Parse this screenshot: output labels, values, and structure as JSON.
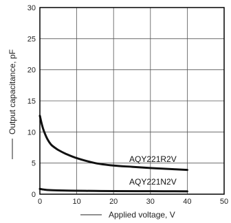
{
  "chart_data": {
    "type": "line",
    "xlabel": "Applied voltage, V",
    "ylabel": "Output capacitance, pF",
    "xlim": [
      0,
      50
    ],
    "ylim": [
      0,
      30
    ],
    "xticks": [
      0,
      10,
      20,
      30,
      40,
      50
    ],
    "yticks": [
      0,
      5,
      10,
      15,
      20,
      25,
      30
    ],
    "grid": true,
    "legend": "none",
    "series": [
      {
        "name": "AQY221R2V",
        "x": [
          0,
          0.5,
          1,
          2,
          3,
          4,
          5,
          7,
          10,
          15,
          20,
          25,
          30,
          35,
          40
        ],
        "y": [
          12.6,
          11.3,
          10.3,
          8.9,
          8.0,
          7.5,
          7.1,
          6.5,
          5.8,
          5.0,
          4.6,
          4.4,
          4.2,
          4.05,
          3.9
        ]
      },
      {
        "name": "AQY221N2V",
        "x": [
          0,
          1,
          2,
          5,
          10,
          15,
          20,
          30,
          40
        ],
        "y": [
          0.85,
          0.75,
          0.68,
          0.6,
          0.55,
          0.52,
          0.5,
          0.48,
          0.46
        ]
      }
    ],
    "annotations": [
      "AQY221R2V",
      "AQY221N2V"
    ]
  }
}
